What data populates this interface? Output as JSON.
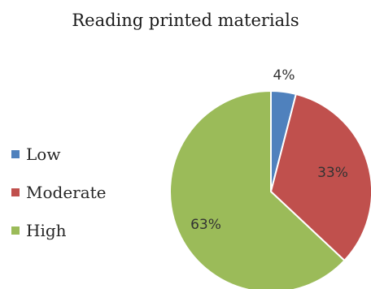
{
  "chart_data": {
    "type": "pie",
    "title": "Reading printed materials",
    "legend_position": "left",
    "categories": [
      "Low",
      "Moderate",
      "High"
    ],
    "values": [
      4,
      33,
      63
    ],
    "data_labels": [
      "4%",
      "33%",
      "63%"
    ],
    "colors": [
      "#4F81BD",
      "#C0504D",
      "#9BBB59"
    ]
  }
}
